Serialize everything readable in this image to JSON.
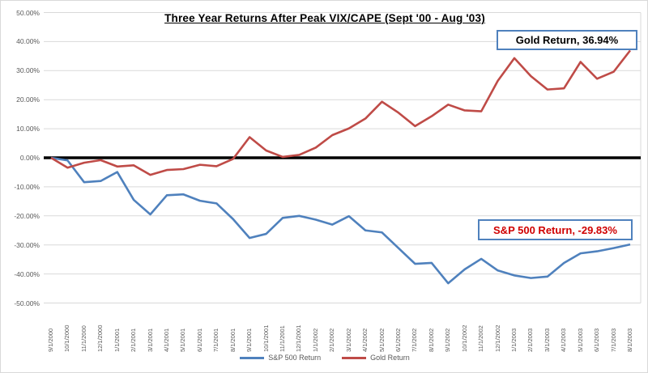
{
  "chart_data": {
    "type": "line",
    "title": "Three Year Returns After Peak VIX/CAPE (Sept '00 - Aug '03)",
    "xlabel": "",
    "ylabel": "",
    "ylim": [
      -50,
      50
    ],
    "grid": true,
    "legend_position": "bottom",
    "y_ticks": [
      "50.00%",
      "40.00%",
      "30.00%",
      "20.00%",
      "10.00%",
      "0.00%",
      "-10.00%",
      "-20.00%",
      "-30.00%",
      "-40.00%",
      "-50.00%"
    ],
    "y_tick_values": [
      50,
      40,
      30,
      20,
      10,
      0,
      -10,
      -20,
      -30,
      -40,
      -50
    ],
    "categories": [
      "9/1/2000",
      "10/1/2000",
      "11/1/2000",
      "12/1/2000",
      "1/1/2001",
      "2/1/2001",
      "3/1/2001",
      "4/1/2001",
      "5/1/2001",
      "6/1/2001",
      "7/1/2001",
      "8/1/2001",
      "9/1/2001",
      "10/1/2001",
      "11/1/2001",
      "12/1/2001",
      "1/1/2002",
      "2/1/2002",
      "3/1/2002",
      "4/1/2002",
      "5/1/2002",
      "6/1/2002",
      "7/1/2002",
      "8/1/2002",
      "9/1/2002",
      "10/1/2002",
      "11/1/2002",
      "12/1/2002",
      "1/1/2003",
      "2/1/2003",
      "3/1/2003",
      "4/1/2003",
      "5/1/2003",
      "6/1/2003",
      "7/1/2003",
      "8/1/2003"
    ],
    "series": [
      {
        "name": "S&P 500 Return",
        "color": "#4f81bd",
        "values": [
          0.0,
          -0.9,
          -8.4,
          -8.0,
          -4.9,
          -14.5,
          -19.5,
          -12.9,
          -12.6,
          -14.8,
          -15.7,
          -21.1,
          -27.6,
          -26.2,
          -20.7,
          -20.0,
          -21.3,
          -23.0,
          -20.1,
          -25.0,
          -25.7,
          -31.1,
          -36.5,
          -36.2,
          -43.2,
          -38.4,
          -34.8,
          -38.8,
          -40.5,
          -41.4,
          -40.9,
          -36.2,
          -32.9,
          -32.2,
          -31.1,
          -29.83
        ]
      },
      {
        "name": "Gold Return",
        "color": "#bf4b47",
        "values": [
          0.0,
          -3.4,
          -1.7,
          -0.8,
          -3.0,
          -2.6,
          -5.9,
          -4.2,
          -3.9,
          -2.4,
          -2.9,
          -0.4,
          7.1,
          2.5,
          0.3,
          1.0,
          3.5,
          7.8,
          10.1,
          13.5,
          19.3,
          15.5,
          10.9,
          14.3,
          18.3,
          16.3,
          16.0,
          26.5,
          34.3,
          28.1,
          23.5,
          23.9,
          33.0,
          27.2,
          29.6,
          36.94
        ]
      }
    ],
    "zero_line_color": "#000000",
    "gridline_color": "#d9d9d9",
    "annotations": [
      {
        "text": "Gold Return, 36.94%",
        "color": "#000000"
      },
      {
        "text": "S&P 500 Return, -29.83%",
        "color": "#d00000"
      }
    ]
  },
  "annotations": {
    "gold": "Gold Return, 36.94%",
    "sp500": "S&P 500 Return, -29.83%"
  }
}
